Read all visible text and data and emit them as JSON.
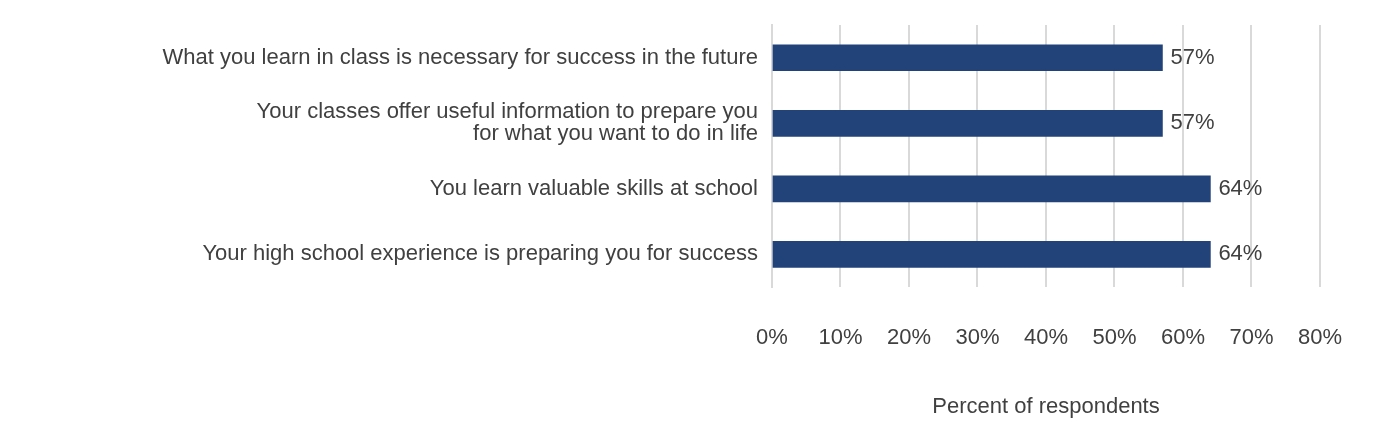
{
  "chart_data": {
    "type": "bar",
    "orientation": "horizontal",
    "xlabel": "Percent of respondents",
    "categories": [
      "What you learn in class is necessary for success in the future",
      "Your classes offer useful information to prepare you\nfor what you want to do in life",
      "You learn valuable skills at school",
      "Your high school experience is preparing you for success"
    ],
    "values": [
      57,
      57,
      64,
      64
    ],
    "color": "#22437a",
    "value_labels": [
      "57%",
      "57%",
      "64%",
      "64%"
    ],
    "xlim": [
      0,
      80
    ],
    "xticks": [
      {
        "value": 0,
        "label": "0%"
      },
      {
        "value": 10,
        "label": "10%"
      },
      {
        "value": 20,
        "label": "20%"
      },
      {
        "value": 30,
        "label": "30%"
      },
      {
        "value": 40,
        "label": "40%"
      },
      {
        "value": 50,
        "label": "50%"
      },
      {
        "value": 60,
        "label": "60%"
      },
      {
        "value": 70,
        "label": "70%"
      },
      {
        "value": 80,
        "label": "80%"
      }
    ],
    "grid": "x",
    "legend": false
  }
}
